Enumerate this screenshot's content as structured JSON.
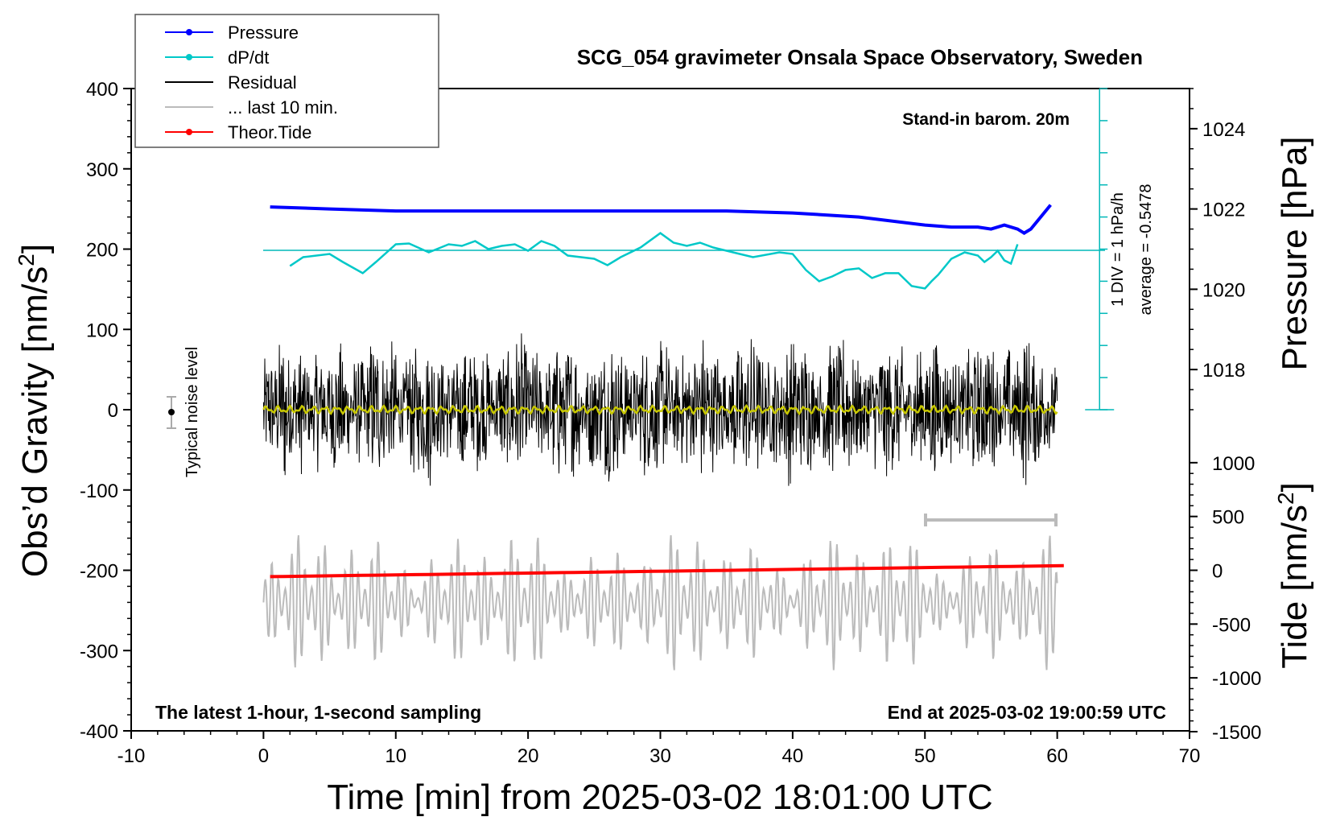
{
  "title": "SCG_054 gravimeter Onsala Space Observatory, Sweden",
  "chart_data": {
    "type": "line",
    "title": "SCG_054 gravimeter Onsala Space Observatory, Sweden",
    "xlabel": "Time [min] from 2025-03-02 18:01:00 UTC",
    "ylabel_left_prefix": "Obs’d Gravity [nm/s",
    "ylabel_right_top": "Pressure [hPa]",
    "ylabel_right_bottom_prefix": "Tide [nm/s",
    "unit_superscript": "2",
    "xlim": [
      -10,
      70
    ],
    "ylim_left": [
      -400,
      400
    ],
    "x_ticks": [
      "-10",
      "0",
      "10",
      "20",
      "30",
      "40",
      "50",
      "60",
      "70"
    ],
    "y_ticks_left": [
      "400",
      "300",
      "200",
      "100",
      "0",
      "-100",
      "-200",
      "-300",
      "-400"
    ],
    "y_ticks_pressure": [
      "1024",
      "1022",
      "1020",
      "1018"
    ],
    "pressure_ticks_values": [
      1024,
      1022,
      1020,
      1018
    ],
    "y_ticks_tide": [
      "1000",
      "500",
      "0",
      "-500",
      "-1000",
      "-1500"
    ],
    "tide_ticks_values": [
      1000,
      500,
      0,
      -500,
      -1000,
      -1500
    ],
    "legend": [
      {
        "label": "Pressure",
        "color": "#0000ff",
        "marker": true
      },
      {
        "label": "dP/dt",
        "color": "#00c8c8",
        "marker": true
      },
      {
        "label": "Residual",
        "color": "#000000",
        "marker": false
      },
      {
        "label": "... last 10 min.",
        "color": "#bbbbbb",
        "marker": false
      },
      {
        "label": "Theor.Tide",
        "color": "#ff0000",
        "marker": true
      }
    ],
    "annotations": {
      "standin": "Stand-in barom. 20m",
      "div": "1 DIV = 1 hPa/h",
      "average": "average = -0.5478",
      "noise": "Typical noise level",
      "latest": "The latest 1-hour, 1-second sampling",
      "end": "End at 2025-03-02 19:00:59 UTC"
    },
    "pressure": {
      "x": [
        0.5,
        5,
        10,
        15,
        20,
        25,
        30,
        35,
        40,
        45,
        50,
        52,
        54,
        55,
        56,
        57,
        57.5,
        58,
        58.5,
        59,
        59.5
      ],
      "y": [
        1022.05,
        1022.0,
        1021.95,
        1021.95,
        1021.95,
        1021.95,
        1021.95,
        1021.95,
        1021.9,
        1021.8,
        1021.6,
        1021.55,
        1021.55,
        1021.5,
        1021.6,
        1021.5,
        1021.4,
        1021.5,
        1021.7,
        1021.9,
        1022.1
      ]
    },
    "dpdt": {
      "x": [
        2,
        3,
        5,
        6,
        7.5,
        8.5,
        10,
        11,
        12.5,
        14,
        15,
        16,
        17,
        18,
        19,
        20,
        21,
        22,
        23,
        25,
        26,
        27,
        28.5,
        30,
        31,
        32,
        33,
        34,
        36,
        37,
        39,
        40,
        41,
        42,
        43,
        44,
        45,
        46,
        47,
        48,
        49,
        50,
        50.5,
        51,
        52,
        53,
        54,
        54.5,
        55,
        55.5,
        56,
        56.5,
        57
      ],
      "y": [
        -1.05,
        -0.5,
        -0.3,
        -0.8,
        -1.5,
        -0.8,
        0.3,
        0.35,
        -0.2,
        0.3,
        0.2,
        0.5,
        0.0,
        0.2,
        0.3,
        -0.1,
        0.5,
        0.2,
        -0.4,
        -0.6,
        -1.0,
        -0.5,
        0.1,
        1.0,
        0.4,
        0.2,
        0.4,
        0.1,
        -0.3,
        -0.5,
        -0.2,
        -0.3,
        -1.3,
        -2.0,
        -1.7,
        -1.3,
        -1.2,
        -1.8,
        -1.5,
        -1.5,
        -2.3,
        -2.45,
        -2.0,
        -1.6,
        -0.6,
        -0.2,
        -0.4,
        -0.8,
        -0.5,
        -0.1,
        -0.7,
        -0.9,
        0.3
      ]
    },
    "pressure_scale": {
      "p0": 1021,
      "p0_gravity": 200,
      "hpa_per_gravity_100": 1.9,
      "dpdt_scale_gravity_per_unit": 20
    }
  }
}
